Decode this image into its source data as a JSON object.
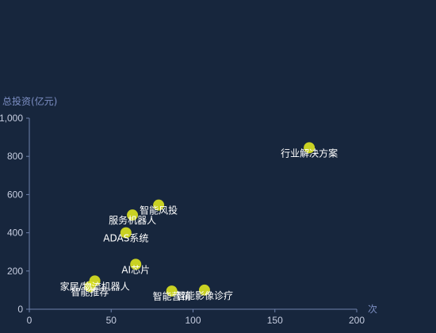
{
  "chart_data": {
    "type": "scatter",
    "xlabel": "次",
    "ylabel": "总投资(亿元)",
    "xlim": [
      0,
      200
    ],
    "ylim": [
      0,
      1000
    ],
    "x_ticks": [
      "0",
      "50",
      "100",
      "150",
      "200"
    ],
    "y_ticks": [
      "0",
      "200",
      "400",
      "600",
      "800",
      "1,000"
    ],
    "point_color": "#d9e021",
    "points": [
      {
        "label": "行业解决方案",
        "x": 171,
        "y": 845
      },
      {
        "label": "智能风投",
        "x": 79,
        "y": 545
      },
      {
        "label": "服务机器人",
        "x": 63,
        "y": 493
      },
      {
        "label": "ADAS系统",
        "x": 59,
        "y": 400
      },
      {
        "label": "AI芯片",
        "x": 65,
        "y": 235
      },
      {
        "label": "家居/物流机器人",
        "x": 40,
        "y": 148
      },
      {
        "label": "智能推荐",
        "x": 37,
        "y": 118
      },
      {
        "label": "智能营销",
        "x": 87,
        "y": 95
      },
      {
        "label": "智能影像诊疗",
        "x": 107,
        "y": 100
      }
    ]
  }
}
